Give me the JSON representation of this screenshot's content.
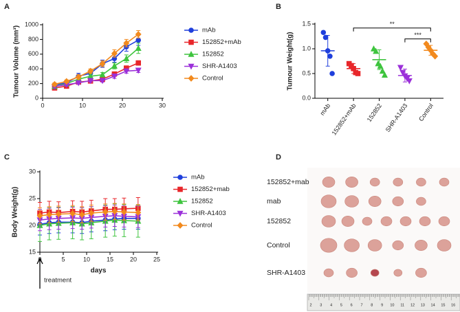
{
  "chart_data": [
    {
      "type": "line",
      "panel": "A",
      "ylabel": "Tumour Volume (mm³)",
      "x": [
        3,
        6,
        9,
        12,
        15,
        18,
        21,
        24
      ],
      "xlim": [
        0,
        30
      ],
      "xticks": [
        0,
        10,
        20,
        30
      ],
      "ylim": [
        0,
        1000
      ],
      "yticks": [
        0,
        200,
        400,
        600,
        800,
        1000
      ],
      "series": [
        {
          "name": "mAb",
          "color": "#1f3fdc",
          "marker": "circle",
          "values": [
            180,
            210,
            300,
            340,
            470,
            540,
            700,
            790
          ],
          "errors": [
            20,
            30,
            40,
            40,
            50,
            50,
            60,
            70
          ]
        },
        {
          "name": "152852+mAb",
          "color": "#e8262a",
          "marker": "square",
          "values": [
            140,
            165,
            220,
            235,
            260,
            330,
            410,
            480
          ],
          "errors": [
            20,
            20,
            20,
            20,
            30,
            30,
            30,
            30
          ]
        },
        {
          "name": "152852",
          "color": "#3ec43e",
          "marker": "triangle",
          "values": [
            160,
            200,
            260,
            300,
            320,
            440,
            540,
            680
          ],
          "errors": [
            20,
            20,
            30,
            30,
            30,
            40,
            50,
            70
          ]
        },
        {
          "name": "SHR-A1403",
          "color": "#9b30d9",
          "marker": "down-triangle",
          "values": [
            160,
            185,
            210,
            240,
            240,
            300,
            370,
            380
          ],
          "errors": [
            20,
            20,
            20,
            20,
            20,
            30,
            30,
            30
          ]
        },
        {
          "name": "Control",
          "color": "#f28a1e",
          "marker": "diamond",
          "values": [
            190,
            230,
            290,
            370,
            470,
            610,
            750,
            870
          ],
          "errors": [
            20,
            20,
            30,
            30,
            40,
            50,
            50,
            50
          ]
        }
      ]
    },
    {
      "type": "strip",
      "panel": "B",
      "ylabel": "Tumour Weight(g)",
      "categories": [
        "mAb",
        "152852+mAb",
        "152852",
        "SHR-A1403",
        "Control"
      ],
      "colors": [
        "#1f3fdc",
        "#e8262a",
        "#3ec43e",
        "#9b30d9",
        "#f28a1e"
      ],
      "markers": [
        "circle",
        "square",
        "triangle",
        "down-triangle",
        "diamond"
      ],
      "points": [
        [
          1.33,
          1.23,
          0.96,
          0.85,
          0.5
        ],
        [
          0.7,
          0.66,
          0.6,
          0.52,
          0.5
        ],
        [
          1.0,
          0.95,
          0.7,
          0.65,
          0.55,
          0.47
        ],
        [
          0.62,
          0.52,
          0.45,
          0.4,
          0.35
        ],
        [
          1.1,
          1.03,
          0.97,
          0.9,
          0.85
        ]
      ],
      "values": [
        0.96,
        0.6,
        0.78,
        0.46,
        0.97
      ],
      "errors": [
        0.31,
        0.1,
        0.2,
        0.13,
        0.1
      ],
      "ylim": [
        0,
        1.5
      ],
      "yticks": [
        {
          "value": 0,
          "label": "0.0"
        },
        0.5,
        {
          "value": 1,
          "label": "1.0"
        },
        1.5
      ],
      "annotations": [
        "**",
        "***"
      ]
    },
    {
      "type": "line",
      "panel": "C",
      "ylabel": "Body Weight(g)",
      "xlabel": "days",
      "annotation": "treatment",
      "x": [
        0,
        2,
        4,
        7,
        9,
        11,
        14,
        16,
        18,
        21
      ],
      "xlim": [
        0,
        25
      ],
      "xticks": [
        0,
        5,
        10,
        15,
        20,
        25
      ],
      "ylim": [
        15,
        30
      ],
      "yticks": [
        15,
        20,
        25,
        30
      ],
      "series": [
        {
          "name": "mAb",
          "color": "#1f3fdc",
          "marker": "circle",
          "values": [
            20.2,
            20.5,
            20.6,
            20.6,
            20.5,
            20.8,
            21,
            21.2,
            21.3,
            21.3
          ],
          "errors": [
            2,
            2,
            2,
            2,
            2,
            2,
            2,
            2,
            2,
            2
          ]
        },
        {
          "name": "152852+mab",
          "color": "#e8262a",
          "marker": "square",
          "values": [
            22.3,
            22.5,
            22.4,
            22.6,
            22.5,
            22.7,
            23,
            23,
            23.1,
            23.2
          ],
          "errors": [
            2,
            2,
            2,
            2,
            2,
            2,
            2,
            2,
            2,
            2
          ]
        },
        {
          "name": "152852",
          "color": "#3ec43e",
          "marker": "triangle",
          "values": [
            20,
            20.3,
            20.4,
            20.5,
            20.3,
            20.5,
            20.8,
            21,
            20.9,
            20.8
          ],
          "errors": [
            3,
            3,
            3,
            3,
            3,
            3,
            3,
            3,
            3,
            3
          ]
        },
        {
          "name": "SHR-A1403",
          "color": "#9b30d9",
          "marker": "down-triangle",
          "values": [
            21,
            21.2,
            21.3,
            21.4,
            21.3,
            21.5,
            21.7,
            21.8,
            21.7,
            21.6
          ],
          "errors": [
            2,
            2,
            2,
            2,
            2,
            2,
            2,
            2,
            2,
            2
          ]
        },
        {
          "name": "Control",
          "color": "#f28a1e",
          "marker": "diamond",
          "values": [
            21.8,
            22,
            22.1,
            22.2,
            22,
            22.3,
            22.5,
            22.6,
            22.5,
            22.4
          ],
          "errors": [
            1.5,
            1.5,
            1.5,
            1.5,
            1.5,
            1.5,
            1.5,
            1.5,
            1.5,
            1.5
          ]
        }
      ]
    }
  ],
  "photo": {
    "panel": "D",
    "rows": [
      "152852+mab",
      "mab",
      "152852",
      "Control",
      "SHR-A1403"
    ],
    "ruler_ticks": [
      2,
      3,
      4,
      5,
      6,
      7,
      8,
      9,
      10,
      11,
      12,
      13,
      14,
      15,
      16
    ]
  }
}
